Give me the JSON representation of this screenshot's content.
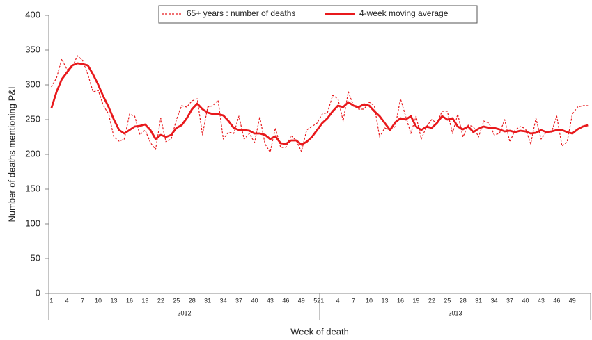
{
  "chart_data": {
    "type": "line",
    "y_label": "Number of deaths mentioning P&I",
    "x_label": "Week of death",
    "groups": [
      {
        "name": "2012",
        "categories": [
          1,
          null,
          null,
          4,
          null,
          null,
          7,
          null,
          null,
          10,
          null,
          null,
          13,
          null,
          null,
          16,
          null,
          null,
          19,
          null,
          null,
          22,
          null,
          null,
          25,
          null,
          null,
          28,
          null,
          null,
          31,
          null,
          null,
          34,
          null,
          null,
          37,
          null,
          null,
          40,
          null,
          null,
          43,
          null,
          null,
          46,
          null,
          null,
          49,
          null,
          null,
          52
        ]
      },
      {
        "name": "2013",
        "categories": [
          1,
          null,
          null,
          4,
          null,
          null,
          7,
          null,
          null,
          10,
          null,
          null,
          13,
          null,
          null,
          16,
          null,
          null,
          19,
          null,
          null,
          22,
          null,
          null,
          25,
          null,
          null,
          28,
          null,
          null,
          31,
          null,
          null,
          34,
          null,
          null,
          37,
          null,
          null,
          40,
          null,
          null,
          43,
          null,
          null,
          46,
          null,
          null,
          49,
          null,
          null,
          null
        ]
      }
    ],
    "series": [
      {
        "name": "65+ years : number of deaths",
        "color": "#e8191c",
        "dashed": true,
        "values": [
          297,
          310,
          337,
          322,
          325,
          342,
          335,
          315,
          290,
          292,
          270,
          258,
          225,
          219,
          222,
          258,
          255,
          228,
          235,
          217,
          207,
          252,
          218,
          222,
          250,
          270,
          268,
          277,
          280,
          228,
          268,
          270,
          278,
          222,
          232,
          230,
          255,
          222,
          230,
          217,
          254,
          215,
          203,
          238,
          210,
          210,
          227,
          220,
          204,
          235,
          240,
          245,
          258,
          260,
          285,
          280,
          248,
          290,
          270,
          265,
          265,
          275,
          270,
          225,
          238,
          235,
          240,
          280,
          255,
          230,
          255,
          222,
          240,
          250,
          245,
          262,
          262,
          230,
          258,
          225,
          242,
          240,
          225,
          248,
          245,
          228,
          230,
          250,
          218,
          235,
          240,
          237,
          215,
          252,
          222,
          232,
          232,
          255,
          212,
          218,
          258,
          268,
          270,
          270
        ]
      },
      {
        "name": "4-week moving average",
        "color": "#e8191c",
        "dashed": false,
        "values": [
          266,
          290,
          308,
          318,
          328,
          331,
          330,
          328,
          315,
          300,
          283,
          268,
          250,
          235,
          230,
          235,
          240,
          241,
          243,
          235,
          222,
          228,
          225,
          228,
          238,
          242,
          252,
          265,
          273,
          265,
          260,
          258,
          258,
          256,
          248,
          238,
          235,
          235,
          234,
          230,
          230,
          228,
          222,
          226,
          216,
          215,
          220,
          220,
          214,
          218,
          225,
          235,
          245,
          252,
          262,
          270,
          268,
          275,
          270,
          268,
          272,
          270,
          262,
          255,
          245,
          235,
          246,
          252,
          250,
          255,
          240,
          235,
          240,
          238,
          245,
          255,
          250,
          252,
          240,
          236,
          240,
          232,
          237,
          240,
          238,
          238,
          236,
          233,
          234,
          232,
          234,
          233,
          230,
          231,
          235,
          232,
          233,
          235,
          235,
          232,
          230,
          236,
          240,
          242
        ]
      }
    ],
    "ylim": [
      0,
      400
    ],
    "yticks": [
      0,
      50,
      100,
      150,
      200,
      250,
      300,
      350,
      400
    ],
    "grid": false,
    "legend": "top"
  }
}
